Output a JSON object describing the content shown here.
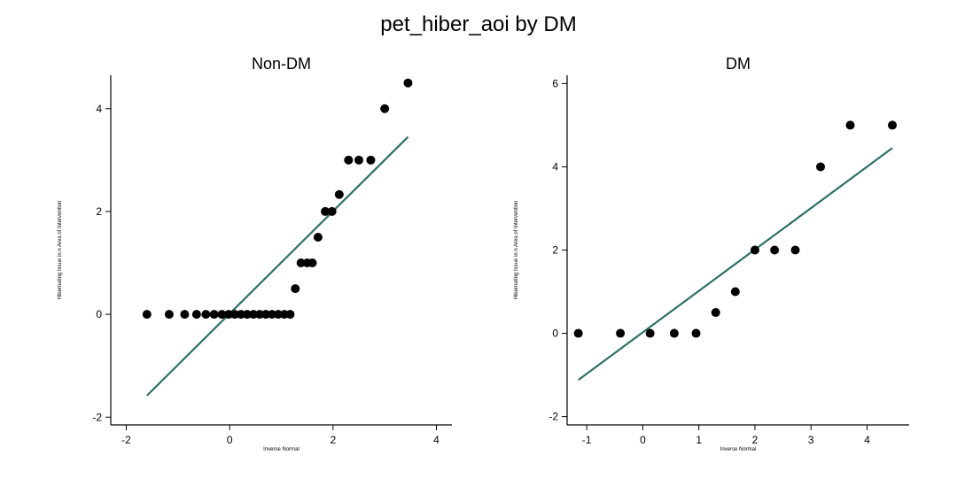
{
  "figure": {
    "title": "pet_hiber_aoi by DM"
  },
  "chart_data": [
    {
      "type": "scatter",
      "title": "Non-DM",
      "xlabel": "Inverse Normal",
      "ylabel": "Hibernating Issue in n Area of Intervention",
      "xlim": [
        -2.3,
        4.3
      ],
      "ylim": [
        -2.15,
        4.65
      ],
      "xticks": [
        "-2",
        "0",
        "2",
        "4"
      ],
      "yticks": [
        "-2",
        "0",
        "2",
        "4"
      ],
      "points": [
        {
          "x": -1.6,
          "y": 0
        },
        {
          "x": -1.17,
          "y": 0
        },
        {
          "x": -0.87,
          "y": 0
        },
        {
          "x": -0.64,
          "y": 0
        },
        {
          "x": -0.46,
          "y": 0
        },
        {
          "x": -0.3,
          "y": 0
        },
        {
          "x": -0.15,
          "y": 0
        },
        {
          "x": -0.02,
          "y": 0
        },
        {
          "x": 0.1,
          "y": 0
        },
        {
          "x": 0.22,
          "y": 0
        },
        {
          "x": 0.34,
          "y": 0
        },
        {
          "x": 0.46,
          "y": 0
        },
        {
          "x": 0.58,
          "y": 0
        },
        {
          "x": 0.7,
          "y": 0
        },
        {
          "x": 0.82,
          "y": 0
        },
        {
          "x": 0.94,
          "y": 0
        },
        {
          "x": 1.06,
          "y": 0
        },
        {
          "x": 1.17,
          "y": 0
        },
        {
          "x": 1.27,
          "y": 0.5
        },
        {
          "x": 1.38,
          "y": 1
        },
        {
          "x": 1.5,
          "y": 1
        },
        {
          "x": 1.6,
          "y": 1
        },
        {
          "x": 1.71,
          "y": 1.5
        },
        {
          "x": 1.85,
          "y": 2
        },
        {
          "x": 1.98,
          "y": 2
        },
        {
          "x": 2.12,
          "y": 2.33
        },
        {
          "x": 2.3,
          "y": 3
        },
        {
          "x": 2.5,
          "y": 3
        },
        {
          "x": 2.73,
          "y": 3
        },
        {
          "x": 3.0,
          "y": 4
        },
        {
          "x": 3.45,
          "y": 4.5
        }
      ],
      "fit_line": {
        "x": [
          -1.6,
          3.45
        ],
        "y": [
          -1.58,
          3.45
        ]
      }
    },
    {
      "type": "scatter",
      "title": "DM",
      "xlabel": "Inverse Normal",
      "ylabel": "Hibernating Issue in n Area of Intervention",
      "xlim": [
        -1.35,
        4.75
      ],
      "ylim": [
        -2.2,
        6.2
      ],
      "xticks": [
        "-1",
        "0",
        "1",
        "2",
        "3",
        "4"
      ],
      "yticks": [
        "-2",
        "0",
        "2",
        "4",
        "6"
      ],
      "points": [
        {
          "x": -1.15,
          "y": 0
        },
        {
          "x": -0.4,
          "y": 0
        },
        {
          "x": 0.13,
          "y": 0
        },
        {
          "x": 0.56,
          "y": 0
        },
        {
          "x": 0.95,
          "y": 0
        },
        {
          "x": 1.3,
          "y": 0.5
        },
        {
          "x": 1.65,
          "y": 1
        },
        {
          "x": 2.0,
          "y": 2
        },
        {
          "x": 2.35,
          "y": 2
        },
        {
          "x": 2.72,
          "y": 2
        },
        {
          "x": 3.17,
          "y": 4
        },
        {
          "x": 3.7,
          "y": 5
        },
        {
          "x": 4.45,
          "y": 5
        }
      ],
      "fit_line": {
        "x": [
          -1.15,
          4.45
        ],
        "y": [
          -1.12,
          4.45
        ]
      }
    }
  ],
  "colors": {
    "marker": "#000000",
    "fit_line": "#2f6f6a",
    "axis": "#000000",
    "background": "#ffffff"
  }
}
